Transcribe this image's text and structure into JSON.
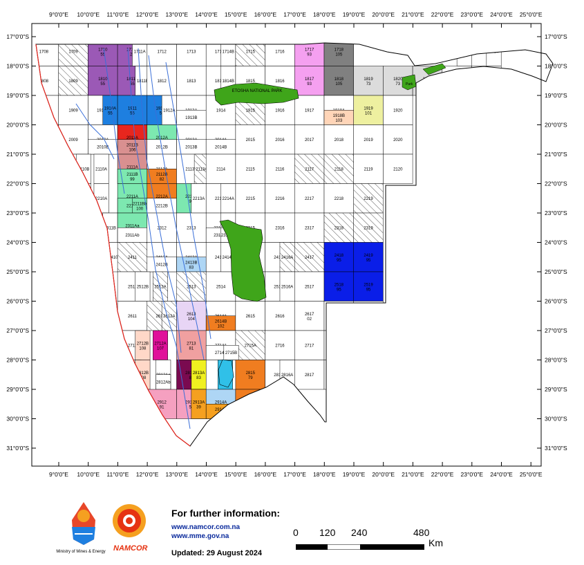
{
  "lon_labels": [
    "9°0'0\"E",
    "10°0'0\"E",
    "11°0'0\"E",
    "12°0'0\"E",
    "13°0'0\"E",
    "14°0'0\"E",
    "15°0'0\"E",
    "16°0'0\"E",
    "17°0'0\"E",
    "18°0'0\"E",
    "19°0'0\"E",
    "20°0'0\"E",
    "21°0'0\"E",
    "22°0'0\"E",
    "23°0'0\"E",
    "24°0'0\"E",
    "25°0'0\"E"
  ],
  "lat_labels": [
    "17°0'0\"S",
    "18°0'0\"S",
    "19°0'0\"S",
    "20°0'0\"S",
    "21°0'0\"S",
    "22°0'0\"S",
    "23°0'0\"S",
    "24°0'0\"S",
    "25°0'0\"S",
    "26°0'0\"S",
    "27°0'0\"S",
    "28°0'0\"S",
    "29°0'0\"S",
    "30°0'0\"S",
    "31°0'0\"S"
  ],
  "park_label": "ETOSHA NATIONAL PARK",
  "park_label_small": "Park",
  "blocks": [
    {
      "id": "1708",
      "c": 0,
      "r": 0,
      "fill": "#ffffff"
    },
    {
      "id": "1709",
      "c": 1,
      "r": 0,
      "fill": "hatch"
    },
    {
      "id": "1710",
      "n": "55",
      "c": 2,
      "r": 0,
      "fill": "#9b59b6"
    },
    {
      "id": "1711B",
      "n": "29",
      "c": 3,
      "r": 0,
      "fill": "#9b59b6"
    },
    {
      "id": "1711A",
      "c": 3.5,
      "r": 0,
      "fill": "#ffffff"
    },
    {
      "id": "1712",
      "c": 4,
      "r": 0,
      "fill": "#ffffff"
    },
    {
      "id": "1713",
      "c": 5,
      "r": 0,
      "fill": "#ffffff"
    },
    {
      "id": "1714A",
      "c": 6,
      "r": 0,
      "fill": "#ffffff"
    },
    {
      "id": "1714B",
      "c": 6.5,
      "r": 0,
      "fill": "#ffffff"
    },
    {
      "id": "1715",
      "c": 7,
      "r": 0,
      "fill": "hatch"
    },
    {
      "id": "1716",
      "c": 8,
      "r": 0,
      "fill": "#ffffff"
    },
    {
      "id": "1717",
      "n": "93",
      "c": 9,
      "r": 0,
      "fill": "#f5a0f0"
    },
    {
      "id": "1718",
      "n": "105",
      "c": 10,
      "r": 0,
      "fill": "#808080"
    },
    {
      "id": "1723",
      "c": 14.5,
      "r": 0,
      "fill": "#ffffff"
    },
    {
      "id": "1724",
      "c": 15.5,
      "r": 0,
      "fill": "#ffffff"
    },
    {
      "id": "1808",
      "c": 0,
      "r": 1,
      "fill": "#ffffff"
    },
    {
      "id": "1809",
      "c": 1,
      "r": 1,
      "fill": "hatch"
    },
    {
      "id": "1810",
      "n": "55",
      "c": 2,
      "r": 1,
      "fill": "#9b59b6"
    },
    {
      "id": "1811A",
      "n": "55",
      "c": 3,
      "r": 1,
      "fill": "#9b59b6"
    },
    {
      "id": "1811B",
      "c": 3.6,
      "r": 1,
      "fill": "#ffffff"
    },
    {
      "id": "1812",
      "c": 4,
      "r": 1,
      "fill": "#ffffff"
    },
    {
      "id": "1813",
      "c": 5,
      "r": 1,
      "fill": "#ffffff"
    },
    {
      "id": "1814A",
      "c": 6,
      "r": 1,
      "fill": "#ffffff"
    },
    {
      "id": "1814B",
      "c": 6.5,
      "r": 1,
      "fill": "#ffffff"
    },
    {
      "id": "1815",
      "c": 7,
      "r": 1,
      "fill": "#ffffff"
    },
    {
      "id": "1816",
      "c": 8,
      "r": 1,
      "fill": "#ffffff"
    },
    {
      "id": "1817",
      "n": "93",
      "c": 9,
      "r": 1,
      "fill": "#f5a0f0"
    },
    {
      "id": "1818",
      "n": "105",
      "c": 10,
      "r": 1,
      "fill": "#808080"
    },
    {
      "id": "1819",
      "n": "73",
      "c": 11,
      "r": 1,
      "fill": "#dcdcdc"
    },
    {
      "id": "1820",
      "n": "73",
      "c": 12,
      "r": 1,
      "fill": "#dcdcdc"
    },
    {
      "id": "1821",
      "n": "73",
      "c": 13,
      "r": 1,
      "fill": "#dcdcdc"
    },
    {
      "id": "1822",
      "c": 14,
      "r": 1,
      "fill": "#ffffff"
    },
    {
      "id": "1823",
      "c": 15,
      "r": 1,
      "fill": "#ffffff"
    },
    {
      "id": "1908",
      "c": 0,
      "r": 2,
      "fill": "#ffffff"
    },
    {
      "id": "1909",
      "c": 1,
      "r": 2,
      "fill": "#ffffff"
    },
    {
      "id": "1910B",
      "c": 2,
      "r": 2,
      "fill": "#ffffff"
    },
    {
      "id": "1910A",
      "n": "55",
      "c": 2.5,
      "r": 2,
      "fill": "#1e7fe0"
    },
    {
      "id": "1911",
      "n": "55",
      "c": 3,
      "r": 2,
      "fill": "#1e7fe0"
    },
    {
      "id": "1912B",
      "n": "55",
      "c": 4,
      "r": 2,
      "fill": "#1e7fe0"
    },
    {
      "id": "1912A",
      "c": 4.5,
      "r": 2,
      "fill": "#ffffff"
    },
    {
      "id": "1913A",
      "c": 5,
      "r": 2,
      "fill": "#ffffff"
    },
    {
      "id": "1913B",
      "c": 5,
      "r": 2.5,
      "fill": "#ffffff"
    },
    {
      "id": "1914",
      "c": 6,
      "r": 2,
      "fill": "#ffffff"
    },
    {
      "id": "1915",
      "c": 7,
      "r": 2,
      "fill": "hatch"
    },
    {
      "id": "1916",
      "c": 8,
      "r": 2,
      "fill": "#ffffff"
    },
    {
      "id": "1917",
      "c": 9,
      "r": 2,
      "fill": "#ffffff"
    },
    {
      "id": "1918A",
      "c": 10,
      "r": 2,
      "fill": "#ffffff"
    },
    {
      "id": "1918B",
      "n": "103",
      "c": 10,
      "r": 2.5,
      "fill": "#ffd5b8"
    },
    {
      "id": "1919",
      "n": "101",
      "c": 11,
      "r": 2,
      "fill": "#eef0a0"
    },
    {
      "id": "1920",
      "c": 12,
      "r": 2,
      "fill": "#ffffff"
    },
    {
      "id": "2009",
      "c": 1,
      "r": 3,
      "fill": "#ffffff"
    },
    {
      "id": "2010A",
      "c": 2,
      "r": 3,
      "fill": "#ffffff"
    },
    {
      "id": "2010B",
      "c": 2,
      "r": 3.5,
      "fill": "#ffffff"
    },
    {
      "id": "2011A",
      "n": "94",
      "c": 3,
      "r": 3,
      "fill": "#e8261e"
    },
    {
      "id": "2011B",
      "n": "106",
      "c": 3,
      "r": 3.5,
      "fill": "#d99090"
    },
    {
      "id": "2012A",
      "n": "97",
      "c": 4,
      "r": 3,
      "fill": "#7de8b0"
    },
    {
      "id": "2012B",
      "c": 4,
      "r": 3.5,
      "fill": "#ffffff"
    },
    {
      "id": "2013A",
      "c": 5,
      "r": 3,
      "fill": "#ffffff"
    },
    {
      "id": "2013B",
      "c": 5,
      "r": 3.5,
      "fill": "#ffffff"
    },
    {
      "id": "2014A",
      "c": 6,
      "r": 3,
      "fill": "#ffffff"
    },
    {
      "id": "2014B",
      "c": 6,
      "r": 3.5,
      "fill": "#ffffff"
    },
    {
      "id": "2015",
      "c": 7,
      "r": 3,
      "fill": "#ffffff"
    },
    {
      "id": "2016",
      "c": 8,
      "r": 3,
      "fill": "#ffffff"
    },
    {
      "id": "2017",
      "c": 9,
      "r": 3,
      "fill": "#ffffff"
    },
    {
      "id": "2018",
      "c": 10,
      "r": 3,
      "fill": "#ffffff"
    },
    {
      "id": "2019",
      "c": 11,
      "r": 3,
      "fill": "#ffffff"
    },
    {
      "id": "2020",
      "c": 12,
      "r": 3,
      "fill": "#ffffff"
    },
    {
      "id": "2109",
      "c": 1,
      "r": 4,
      "fill": "#ffffff"
    },
    {
      "id": "2110B",
      "c": 1.6,
      "r": 4,
      "fill": "#ffffff"
    },
    {
      "id": "2110A",
      "c": 2.2,
      "r": 4,
      "fill": "#ffffff"
    },
    {
      "id": "2111A",
      "n": "106",
      "c": 3,
      "r": 4,
      "fill": "#d99090"
    },
    {
      "id": "2111B",
      "n": "99",
      "c": 3,
      "r": 4.5,
      "fill": "#7de8b0"
    },
    {
      "id": "2112A",
      "c": 4,
      "r": 4,
      "fill": "#ffffff"
    },
    {
      "id": "2112B",
      "n": "82",
      "c": 4,
      "r": 4.5,
      "fill": "#f07d20"
    },
    {
      "id": "2113B",
      "c": 5,
      "r": 4,
      "fill": "#ffffff"
    },
    {
      "id": "2113A",
      "c": 5.6,
      "r": 4,
      "fill": "hatch"
    },
    {
      "id": "2114",
      "c": 6,
      "r": 4,
      "fill": "#ffffff"
    },
    {
      "id": "2115",
      "c": 7,
      "r": 4,
      "fill": "#ffffff"
    },
    {
      "id": "2116",
      "c": 8,
      "r": 4,
      "fill": "#ffffff"
    },
    {
      "id": "2117",
      "c": 9,
      "r": 4,
      "fill": "hatch"
    },
    {
      "id": "2118",
      "c": 10,
      "r": 4,
      "fill": "hatch"
    },
    {
      "id": "2119",
      "c": 11,
      "r": 4,
      "fill": "#ffffff"
    },
    {
      "id": "2120",
      "c": 12,
      "r": 4,
      "fill": "#ffffff"
    },
    {
      "id": "2210B",
      "c": 1.6,
      "r": 5,
      "fill": "#ffffff"
    },
    {
      "id": "2210A",
      "c": 2.2,
      "r": 5,
      "fill": "#ffffff"
    },
    {
      "id": "2211A",
      "n": "99",
      "c": 3,
      "r": 5,
      "fill": "#7de8b0"
    },
    {
      "id": "2211B",
      "c": 3,
      "r": 5.5,
      "fill": "#7de8b0"
    },
    {
      "id": "2211Bb",
      "n": "100",
      "c": 3.5,
      "r": 5.5,
      "fill": "#7de8b0"
    },
    {
      "id": "2212A",
      "n": "82",
      "c": 4,
      "r": 5,
      "fill": "#f07d20"
    },
    {
      "id": "2212B",
      "c": 4,
      "r": 5.5,
      "fill": "#ffffff"
    },
    {
      "id": "2213B",
      "n": "98",
      "c": 5,
      "r": 5,
      "fill": "#7de8b0"
    },
    {
      "id": "2213A",
      "c": 5.5,
      "r": 5,
      "fill": "#ffffff"
    },
    {
      "id": "2214B",
      "c": 6,
      "r": 5,
      "fill": "#ffffff"
    },
    {
      "id": "2214A",
      "c": 6.5,
      "r": 5,
      "fill": "#ffffff"
    },
    {
      "id": "2215",
      "c": 7,
      "r": 5,
      "fill": "#ffffff"
    },
    {
      "id": "2216",
      "c": 8,
      "r": 5,
      "fill": "#ffffff"
    },
    {
      "id": "2217",
      "c": 9,
      "r": 5,
      "fill": "#ffffff"
    },
    {
      "id": "2218",
      "c": 10,
      "r": 5,
      "fill": "#ffffff"
    },
    {
      "id": "2219",
      "c": 11,
      "r": 5,
      "fill": "hatch"
    },
    {
      "id": "2310",
      "c": 2,
      "r": 6,
      "fill": "#ffffff"
    },
    {
      "id": "2311B",
      "c": 2.5,
      "r": 6,
      "fill": "#ffffff"
    },
    {
      "id": "2311Aa",
      "n": "100",
      "c": 3,
      "r": 6,
      "fill": "#7de8b0"
    },
    {
      "id": "2311Ab",
      "c": 3,
      "r": 6.5,
      "fill": "#ffffff"
    },
    {
      "id": "2312",
      "c": 4,
      "r": 6,
      "fill": "#ffffff"
    },
    {
      "id": "2313",
      "c": 5,
      "r": 6,
      "fill": "#ffffff"
    },
    {
      "id": "2314Aa",
      "c": 6,
      "r": 6,
      "fill": "#ffffff"
    },
    {
      "id": "2314Ab",
      "c": 6.5,
      "r": 6,
      "fill": "#ffffff"
    },
    {
      "id": "2314Ba",
      "c": 6,
      "r": 6.5,
      "fill": "#ffffff"
    },
    {
      "id": "2314Bb",
      "c": 6.5,
      "r": 6.5,
      "fill": "#ffffff"
    },
    {
      "id": "2315",
      "c": 7,
      "r": 6,
      "fill": "#ffffff"
    },
    {
      "id": "2316",
      "c": 8,
      "r": 6,
      "fill": "#ffffff"
    },
    {
      "id": "2317",
      "c": 9,
      "r": 6,
      "fill": "#ffffff"
    },
    {
      "id": "2318",
      "c": 10,
      "r": 6,
      "fill": "hatch"
    },
    {
      "id": "2319",
      "c": 11,
      "r": 6,
      "fill": "hatch"
    },
    {
      "id": "2410",
      "c": 2.6,
      "r": 7,
      "fill": "#ffffff"
    },
    {
      "id": "2411",
      "c": 3,
      "r": 7,
      "fill": "hatch"
    },
    {
      "id": "2412A",
      "c": 4,
      "r": 7,
      "fill": "#ffffff"
    },
    {
      "id": "2412B",
      "c": 4,
      "r": 7.5,
      "fill": "#ffffff"
    },
    {
      "id": "2413A",
      "c": 5,
      "r": 7,
      "fill": "#ffffff"
    },
    {
      "id": "2413B",
      "n": "83",
      "c": 5,
      "r": 7.5,
      "fill": "#aed6f5"
    },
    {
      "id": "2414B",
      "c": 6,
      "r": 7,
      "fill": "#ffffff"
    },
    {
      "id": "2414A",
      "c": 6.5,
      "r": 7,
      "fill": "#ffffff"
    },
    {
      "id": "2415",
      "c": 7,
      "r": 7,
      "fill": "#ffffff"
    },
    {
      "id": "2416B",
      "c": 8,
      "r": 7,
      "fill": "#ffffff"
    },
    {
      "id": "2416A",
      "c": 8.5,
      "r": 7,
      "fill": "hatch"
    },
    {
      "id": "2417",
      "c": 9,
      "r": 7,
      "fill": "hatch"
    },
    {
      "id": "2418",
      "n": "95",
      "c": 10,
      "r": 7,
      "fill": "#0a1ee8"
    },
    {
      "id": "2419",
      "n": "95",
      "c": 11,
      "r": 7,
      "fill": "#0a1ee8"
    },
    {
      "id": "2511",
      "c": 3,
      "r": 8,
      "fill": "#ffffff"
    },
    {
      "id": "2512B",
      "c": 3.6,
      "r": 8,
      "fill": "#ffffff"
    },
    {
      "id": "2512A",
      "c": 4.2,
      "r": 8,
      "fill": "hatch"
    },
    {
      "id": "2513",
      "c": 5,
      "r": 8,
      "fill": "hatch"
    },
    {
      "id": "2514",
      "c": 6,
      "r": 8,
      "fill": "#ffffff"
    },
    {
      "id": "2515",
      "c": 7,
      "r": 8,
      "fill": "#ffffff"
    },
    {
      "id": "2516B",
      "c": 8,
      "r": 8,
      "fill": "#ffffff"
    },
    {
      "id": "2516A",
      "c": 8.5,
      "r": 8,
      "fill": "#ffffff"
    },
    {
      "id": "2517",
      "c": 9,
      "r": 8,
      "fill": "#ffffff"
    },
    {
      "id": "2518",
      "n": "95",
      "c": 10,
      "r": 8,
      "fill": "#0a1ee8"
    },
    {
      "id": "2519",
      "n": "95",
      "c": 11,
      "r": 8,
      "fill": "#0a1ee8"
    },
    {
      "id": "2611",
      "c": 3,
      "r": 9,
      "fill": "#ffffff"
    },
    {
      "id": "2612B",
      "c": 4,
      "r": 9,
      "fill": "hatch"
    },
    {
      "id": "2612A",
      "c": 4.5,
      "r": 9,
      "fill": "hatch"
    },
    {
      "id": "2613",
      "n": "104",
      "c": 5,
      "r": 9,
      "fill": "#e8d5f5"
    },
    {
      "id": "2614A",
      "c": 6,
      "r": 9,
      "fill": "#ffffff"
    },
    {
      "id": "2614B",
      "n": "102",
      "c": 6,
      "r": 9.5,
      "fill": "#f07d20"
    },
    {
      "id": "2615",
      "c": 7,
      "r": 9,
      "fill": "#ffffff"
    },
    {
      "id": "2616",
      "c": 8,
      "r": 9,
      "fill": "#ffffff"
    },
    {
      "id": "2617",
      "n": "02",
      "c": 9,
      "r": 9,
      "fill": "#ffffff"
    },
    {
      "id": "2618",
      "c": 10,
      "r": 9,
      "fill": "#ffffff"
    },
    {
      "id": "2619",
      "c": 11,
      "r": 9,
      "fill": "#ffffff"
    },
    {
      "id": "2711",
      "c": 3,
      "r": 10,
      "fill": "#ffffff"
    },
    {
      "id": "2712B",
      "n": "108",
      "c": 3.6,
      "r": 10,
      "fill": "#ffd8c8"
    },
    {
      "id": "2712A",
      "n": "107",
      "c": 4.2,
      "r": 10,
      "fill": "#e0109a"
    },
    {
      "id": "2713",
      "n": "81",
      "c": 5,
      "r": 10,
      "fill": "#f0a0a0"
    },
    {
      "id": "2714A",
      "c": 6,
      "r": 10,
      "fill": "#ffffff"
    },
    {
      "id": "2714B",
      "c": 6,
      "r": 10.5,
      "fill": "#ffffff"
    },
    {
      "id": "2715A",
      "c": 7,
      "r": 10,
      "fill": "hatch"
    },
    {
      "id": "2715B",
      "c": 6.6,
      "r": 10.5,
      "fill": "#ffffff"
    },
    {
      "id": "2716",
      "c": 8,
      "r": 10,
      "fill": "#ffffff"
    },
    {
      "id": "2717",
      "c": 9,
      "r": 10,
      "fill": "#ffffff"
    },
    {
      "id": "2718",
      "c": 10,
      "r": 10,
      "fill": "#ffffff"
    },
    {
      "id": "2719",
      "c": 11,
      "r": 10,
      "fill": "#ffffff"
    },
    {
      "id": "2811",
      "c": 3.3,
      "r": 11,
      "fill": "#ffffff"
    },
    {
      "id": "2812B",
      "n": "108",
      "c": 3.6,
      "r": 11,
      "fill": "#ffd8c8"
    },
    {
      "id": "2812Aa",
      "c": 4.3,
      "r": 11,
      "fill": "#ffffff"
    },
    {
      "id": "2812Ab",
      "c": 4.3,
      "r": 11.5,
      "fill": "#ffffff"
    },
    {
      "id": "2813B",
      "n": "80",
      "c": 5,
      "r": 11,
      "fill": "#7a0a50"
    },
    {
      "id": "2813A",
      "n": "83",
      "c": 5.5,
      "r": 11,
      "fill": "#f0f020"
    },
    {
      "id": "Kudu",
      "n": "3",
      "c": 6.4,
      "r": 11,
      "fill": "#30c0e8"
    },
    {
      "id": "2815",
      "n": "79",
      "c": 7,
      "r": 11,
      "fill": "#f07d20"
    },
    {
      "id": "2816B",
      "c": 8,
      "r": 11,
      "fill": "#ffffff"
    },
    {
      "id": "2816A",
      "c": 8.5,
      "r": 11,
      "fill": "#ffffff"
    },
    {
      "id": "2817",
      "c": 9,
      "r": 11,
      "fill": "#ffffff"
    },
    {
      "id": "2818",
      "c": 10,
      "r": 11,
      "fill": "#ffffff"
    },
    {
      "id": "2819",
      "c": 11,
      "r": 11,
      "fill": "#ffffff"
    },
    {
      "id": "2912",
      "n": "91",
      "c": 4,
      "r": 12,
      "fill": "#f5a0c0"
    },
    {
      "id": "2913B",
      "n": "55",
      "c": 5,
      "r": 12,
      "fill": "#f5a0c0"
    },
    {
      "id": "2913A",
      "n": "39",
      "c": 5.5,
      "r": 12,
      "fill": "#f5a020"
    },
    {
      "id": "2914A",
      "n": "85",
      "c": 6,
      "r": 12,
      "fill": "#aed6f5"
    },
    {
      "id": "2914B",
      "n": "39",
      "c": 6,
      "r": 12.5,
      "fill": "#f5a020"
    },
    {
      "id": "2915",
      "n": "79",
      "c": 7,
      "r": 12,
      "fill": "#f07d20"
    }
  ],
  "info": {
    "title": "For further information:",
    "link1": "www.namcor.com.na",
    "link2": "www.mme.gov.na",
    "updated": "Updated: 29 August 2024"
  },
  "logos": {
    "mme_caption": "Ministry of Mines & Energy",
    "namcor_caption": "NAMCOR"
  },
  "scale": {
    "labels": [
      "0",
      "120",
      "240",
      "480"
    ],
    "unit": "Km"
  },
  "colors": {
    "park": "#3fa51a",
    "frame": "#000000",
    "ocean_line": "#e8261e",
    "river": "#3a6fd8"
  }
}
